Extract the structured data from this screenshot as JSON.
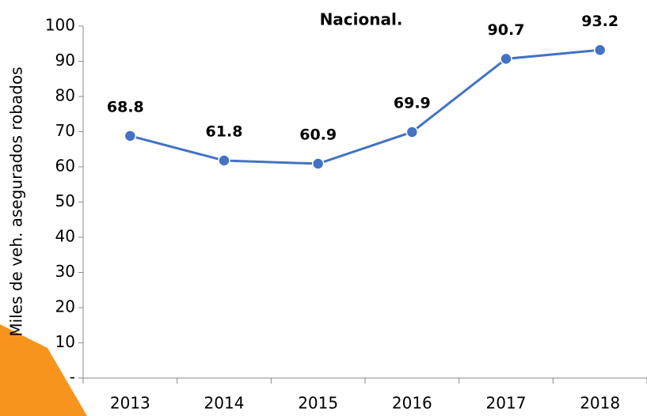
{
  "chart_data": {
    "type": "line",
    "title": "Nacional.",
    "y_label": "Miles de veh. asegurados robados",
    "categories": [
      "2013",
      "2014",
      "2015",
      "2016",
      "2017",
      "2018"
    ],
    "series": [
      {
        "name": "Nacional",
        "color": "#4472c4",
        "values": [
          68.8,
          61.8,
          60.9,
          69.9,
          90.7,
          93.2
        ]
      }
    ],
    "ylim": [
      0,
      100
    ],
    "yticks": [
      {
        "value": 0,
        "label": "-"
      },
      10,
      20,
      30,
      40,
      50,
      60,
      70,
      80,
      90,
      100
    ],
    "grid": false
  }
}
